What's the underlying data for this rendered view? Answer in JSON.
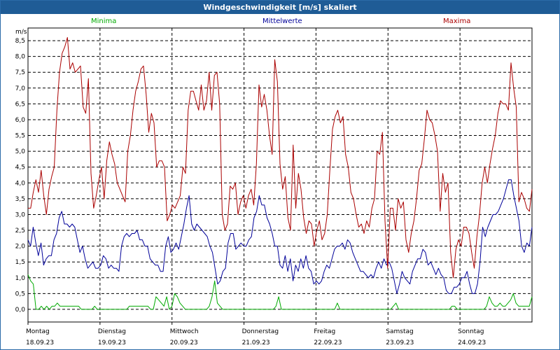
{
  "window": {
    "title": "Windgeschwindigkeit [m/s] skaliert"
  },
  "chart_data": {
    "type": "line",
    "title": "Windgeschwindigkeit [m/s] skaliert",
    "ylabel": "m/s",
    "ylim": [
      -0.4,
      8.9
    ],
    "yticks": [
      "0,0",
      "0,5",
      "1,0",
      "1,5",
      "2,0",
      "2,5",
      "3,0",
      "3,5",
      "4,0",
      "4,5",
      "5,0",
      "5,5",
      "6,0",
      "6,5",
      "7,0",
      "7,5",
      "8,0",
      "8,5"
    ],
    "xlim": [
      0,
      7
    ],
    "days": [
      {
        "name": "Montag",
        "date": "18.09.23"
      },
      {
        "name": "Dienstag",
        "date": "19.09.23"
      },
      {
        "name": "Mittwoch",
        "date": "20.09.23"
      },
      {
        "name": "Donnerstag",
        "date": "21.09.23"
      },
      {
        "name": "Freitag",
        "date": "22.09.23"
      },
      {
        "name": "Samstag",
        "date": "23.09.23"
      },
      {
        "name": "Sonntag",
        "date": "24.09.23"
      }
    ],
    "series": [
      {
        "name": "Minima",
        "color": "#00aa00",
        "values": [
          1.1,
          0.9,
          0.8,
          0,
          0,
          0.1,
          0,
          0.1,
          0,
          0.1,
          0.1,
          0.2,
          0.1,
          0.1,
          0.1,
          0.1,
          0.1,
          0.1,
          0.1,
          0.1,
          0,
          0,
          0,
          0,
          0,
          0.1,
          0,
          0,
          0,
          0,
          0,
          0,
          0,
          0,
          0,
          0,
          0,
          0,
          0.1,
          0.1,
          0.1,
          0.1,
          0.1,
          0.1,
          0.1,
          0.1,
          0,
          0,
          0.4,
          0.3,
          0.2,
          0.1,
          0.4,
          0,
          0.1,
          0.5,
          0.4,
          0.2,
          0.1,
          0,
          0,
          0,
          0,
          0,
          0,
          0,
          0,
          0,
          0.1,
          0.4,
          0.9,
          0.2,
          0.1,
          0,
          0,
          0,
          0,
          0,
          0,
          0,
          0,
          0,
          0,
          0,
          0,
          0,
          0,
          0,
          0,
          0,
          0,
          0,
          0,
          0.1,
          0.4,
          0,
          0,
          0,
          0,
          0,
          0,
          0,
          0,
          0,
          0,
          0,
          0,
          0,
          0,
          0,
          0,
          0,
          0,
          0,
          0,
          0,
          0.2,
          0,
          0,
          0,
          0,
          0,
          0,
          0,
          0,
          0,
          0,
          0,
          0,
          0,
          0,
          0,
          0,
          0,
          0,
          0,
          0,
          0.1,
          0.2,
          0,
          0,
          0,
          0,
          0,
          0,
          0,
          0,
          0,
          0,
          0,
          0,
          0,
          0,
          0,
          0,
          0,
          0,
          0,
          0,
          0.1,
          0.1,
          0,
          0,
          0,
          0,
          0,
          0,
          0,
          0,
          0,
          0,
          0,
          0.1,
          0.4,
          0.2,
          0.1,
          0.1,
          0.2,
          0.1,
          0.1,
          0.2,
          0.3,
          0.5,
          0.2,
          0.1,
          0.1,
          0.1,
          0.1,
          0.1,
          0.4
        ]
      },
      {
        "name": "Mittelwerte",
        "color": "#000099",
        "values": [
          2.2,
          2.0,
          2.6,
          2.1,
          1.7,
          2.1,
          1.4,
          1.6,
          1.7,
          1.7,
          2.2,
          2.4,
          2.9,
          3.1,
          2.7,
          2.7,
          2.6,
          2.7,
          2.6,
          2.2,
          1.8,
          2.0,
          1.6,
          1.3,
          1.4,
          1.5,
          1.3,
          1.3,
          1.4,
          1.7,
          1.6,
          1.3,
          1.4,
          1.3,
          1.3,
          1.2,
          2.0,
          2.3,
          2.4,
          2.3,
          2.4,
          2.4,
          2.5,
          2.2,
          2.2,
          2.0,
          2.0,
          1.6,
          1.5,
          1.4,
          1.4,
          1.2,
          1.2,
          2.0,
          2.3,
          1.8,
          1.9,
          2.1,
          1.9,
          2.3,
          2.7,
          3.2,
          3.6,
          2.7,
          2.5,
          2.7,
          2.6,
          2.5,
          2.4,
          2.3,
          2.0,
          1.8,
          1.3,
          0.8,
          0.9,
          1.2,
          1.3,
          2.1,
          2.4,
          2.4,
          1.9,
          2.0,
          2.1,
          2.0,
          2.0,
          2.2,
          2.3,
          2.9,
          3.1,
          3.6,
          3.3,
          3.3,
          2.9,
          2.7,
          2.4,
          2.0,
          2.0,
          1.4,
          1.3,
          1.7,
          1.2,
          1.6,
          0.9,
          1.4,
          1.2,
          1.6,
          1.3,
          1.7,
          1.3,
          1.2,
          0.8,
          0.9,
          0.8,
          0.9,
          1.2,
          1.4,
          1.3,
          1.6,
          1.9,
          2.0,
          2.0,
          2.1,
          1.9,
          2.2,
          2.1,
          1.8,
          1.6,
          1.4,
          1.2,
          1.2,
          1.1,
          1.0,
          1.1,
          1.0,
          1.3,
          1.5,
          1.3,
          1.6,
          1.4,
          1.5,
          1.3,
          0.9,
          0.5,
          0.8,
          1.2,
          1.0,
          0.9,
          0.8,
          1.2,
          1.4,
          1.6,
          1.6,
          1.9,
          1.8,
          1.4,
          1.5,
          1.3,
          1.1,
          1.3,
          1.1,
          1.0,
          0.6,
          0.5,
          0.5,
          0.7,
          0.7,
          0.8,
          1.0,
          1.0,
          1.2,
          0.8,
          0.5,
          0.5,
          0.8,
          1.5,
          2.6,
          2.3,
          2.6,
          2.8,
          3.0,
          3.0,
          3.1,
          3.3,
          3.5,
          3.8,
          4.1,
          4.1,
          3.6,
          3.2,
          2.8,
          2.0,
          1.8,
          2.1,
          2.0,
          2.6
        ]
      },
      {
        "name": "Maxima",
        "color": "#aa0000",
        "values": [
          3.2,
          3.2,
          3.7,
          4.1,
          3.7,
          4.4,
          3.6,
          3.0,
          3.8,
          4.2,
          4.5,
          6.3,
          7.5,
          8.1,
          8.3,
          8.6,
          7.6,
          7.8,
          7.5,
          7.6,
          7.7,
          6.4,
          6.2,
          7.3,
          4.3,
          3.2,
          3.6,
          4.1,
          4.5,
          3.5,
          4.7,
          5.3,
          4.9,
          4.6,
          4.0,
          3.8,
          3.6,
          3.4,
          5.0,
          5.5,
          6.3,
          6.9,
          7.2,
          7.6,
          7.7,
          6.8,
          5.6,
          6.2,
          5.9,
          4.5,
          4.7,
          4.7,
          4.5,
          2.8,
          3.0,
          3.3,
          3.2,
          3.4,
          3.6,
          4.5,
          4.3,
          6.3,
          6.9,
          6.9,
          6.6,
          6.3,
          7.1,
          6.3,
          6.6,
          7.5,
          6.3,
          7.4,
          7.5,
          6.5,
          3.0,
          2.5,
          2.7,
          3.9,
          3.8,
          4.0,
          3.0,
          3.4,
          3.6,
          3.2,
          3.6,
          3.8,
          3.3,
          4.6,
          7.1,
          6.4,
          6.8,
          6.3,
          5.5,
          4.9,
          7.9,
          7.2,
          4.6,
          3.8,
          4.2,
          2.9,
          2.5,
          5.2,
          3.2,
          4.3,
          3.8,
          2.9,
          2.4,
          2.8,
          2.7,
          2.0,
          2.5,
          2.8,
          2.2,
          2.4,
          3.0,
          4.4,
          5.7,
          6.1,
          6.3,
          5.9,
          6.1,
          4.9,
          4.5,
          3.7,
          3.5,
          3.0,
          2.6,
          2.7,
          2.4,
          2.8,
          2.6,
          3.2,
          3.5,
          5.0,
          4.9,
          5.6,
          2.8,
          1.3,
          3.2,
          3.2,
          2.5,
          3.5,
          3.2,
          3.4,
          2.2,
          1.8,
          2.4,
          2.8,
          3.5,
          4.4,
          4.6,
          5.4,
          6.3,
          6.0,
          5.9,
          5.5,
          5.0,
          3.1,
          4.3,
          3.7,
          4.0,
          1.8,
          1.0,
          1.9,
          2.2,
          2.0,
          2.6,
          2.6,
          2.4,
          1.8,
          1.3,
          2.3,
          3.0,
          4.0,
          4.5,
          4.0,
          4.6,
          5.1,
          5.5,
          6.2,
          6.6,
          6.5,
          6.5,
          6.3,
          7.8,
          7.0,
          6.4,
          3.4,
          3.7,
          3.5,
          3.2,
          3.1,
          3.8
        ]
      }
    ]
  }
}
